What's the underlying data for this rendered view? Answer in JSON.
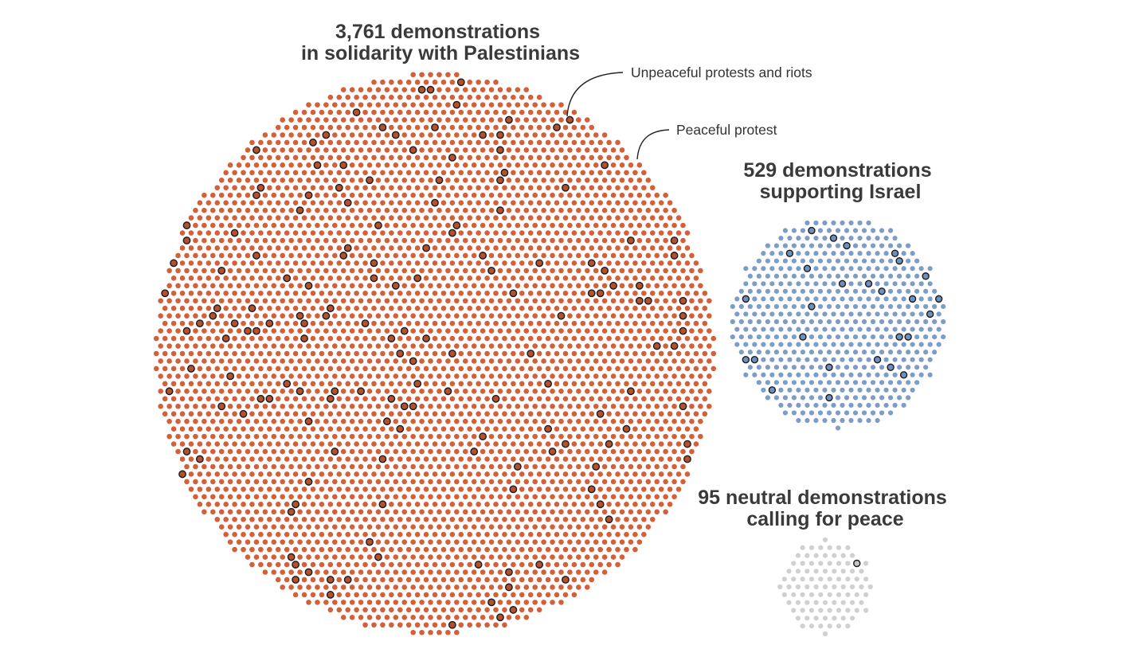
{
  "chart_data": {
    "type": "dot-packed bubble",
    "title": "",
    "groups": [
      {
        "key": "palestinian",
        "title_lines": [
          "3,761 demonstrations",
          "in solidarity with Palestinians"
        ],
        "total": 3761,
        "color": "#d4603a",
        "highlight_color": "#b5502f",
        "unpeaceful_estimate": 165
      },
      {
        "key": "israel",
        "title_lines": [
          "529 demonstrations",
          "supporting Israel"
        ],
        "total": 529,
        "color": "#7d9cc8",
        "highlight_color": "#6f8fc0",
        "unpeaceful_estimate": 27
      },
      {
        "key": "neutral",
        "title_lines": [
          "95 neutral demonstrations",
          "calling for peace"
        ],
        "total": 95,
        "color": "#d0d0d0",
        "highlight_color": "#c2c2c2",
        "unpeaceful_estimate": 1
      }
    ],
    "legend": {
      "unpeaceful": "Unpeaceful protests and riots",
      "peaceful": "Peaceful protest"
    }
  }
}
